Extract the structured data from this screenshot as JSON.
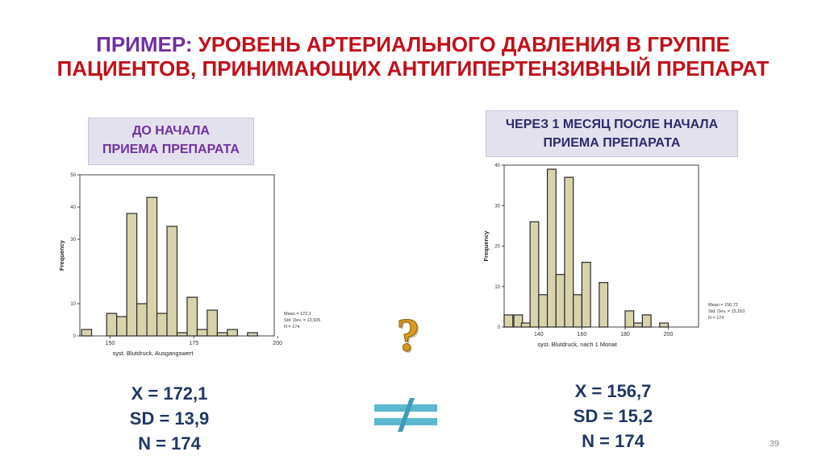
{
  "title": {
    "lead": "ПРИМЕР:",
    "line1_rest": "УРОВЕНЬ АРТЕРИАЛЬНОГО ДАВЛЕНИЯ В ГРУППЕ",
    "line2": "ПАЦИЕНТОВ, ПРИНИМАЮЩИХ АНТИГИПЕРТЕНЗИВНЫЙ ПРЕПАРАТ"
  },
  "left_label": {
    "line1": "ДО НАЧАЛА",
    "line2": "ПРИЕМА ПРЕПАРАТА"
  },
  "right_label": {
    "line1": "ЧЕРЕЗ 1 МЕСЯЦ ПОСЛЕ НАЧАЛА",
    "line2": "ПРИЕМА ПРЕПАРАТА"
  },
  "left_stats": {
    "mean": "X = 172,1",
    "sd": "SD = 13,9",
    "n": "N = 174"
  },
  "right_stats": {
    "mean": "X = 156,7",
    "sd": "SD = 15,2",
    "n": "N = 174"
  },
  "page_number": "39",
  "icons": {
    "question": "question-mark-icon",
    "not_equal": "not-equal-icon"
  },
  "colors": {
    "bar_fill": "#d9d3ac",
    "bar_stroke": "#2a2a2a",
    "title_lead": "#7030a0",
    "title": "#c0111a",
    "stats": "#1f3864",
    "question": "#d89a1c",
    "not_equal": "#5bb8d0"
  },
  "chart_data": [
    {
      "type": "bar",
      "ylabel": "Frequency",
      "xlabel": "syst. Blutdruck, Ausgangswert",
      "x_ticks": [
        "150",
        "175",
        "200"
      ],
      "y_ticks": [
        "0",
        "10",
        "30",
        "40",
        "50"
      ],
      "x": [
        143,
        147.5,
        150.5,
        153.5,
        156.5,
        159.5,
        162.5,
        165.5,
        168.5,
        171.5,
        174.5,
        177.5,
        180.5,
        183.5,
        186.5,
        189.5,
        192.5,
        195.5,
        198.5
      ],
      "values": [
        2,
        0,
        7,
        6,
        38,
        10,
        43,
        7,
        34,
        1,
        12,
        2,
        8,
        1,
        2,
        0,
        1,
        0,
        0
      ],
      "xlim": [
        141,
        199
      ],
      "ylim": [
        0,
        50
      ],
      "annotation": [
        "Mean = 172,1",
        "Std. Dev. = 13,935",
        "N = 174"
      ]
    },
    {
      "type": "bar",
      "ylabel": "Frequency",
      "xlabel": "syst. Blutdruck, nach 1 Monat",
      "x_ticks": [
        "140",
        "160",
        "180",
        "200"
      ],
      "y_ticks": [
        "0",
        "10",
        "20",
        "30",
        "40"
      ],
      "x": [
        126,
        130.5,
        134,
        138,
        142,
        146,
        150,
        154,
        158,
        162,
        166,
        170,
        174,
        178,
        182,
        186,
        190,
        194,
        198,
        202
      ],
      "values": [
        3,
        3,
        1,
        26,
        8,
        39,
        13,
        37,
        8,
        16,
        0,
        11,
        0,
        0,
        4,
        1,
        3,
        0,
        1,
        0
      ],
      "xlim": [
        124,
        214
      ],
      "ylim": [
        0,
        40
      ],
      "annotation": [
        "Mean = 156,72",
        "Std. Dev. = 15,163",
        "N = 174"
      ]
    }
  ]
}
